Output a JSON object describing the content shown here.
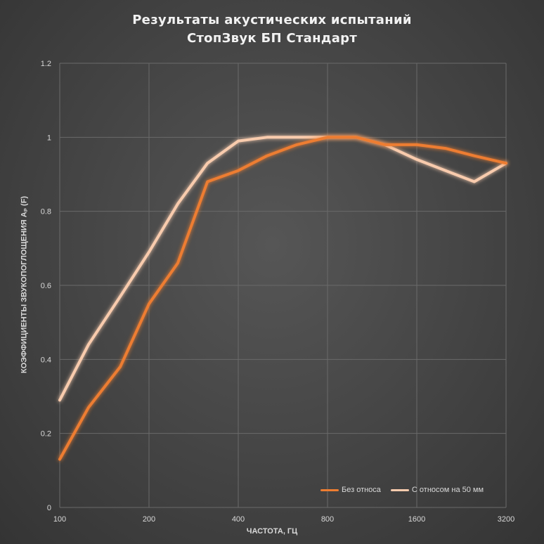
{
  "chart_data": {
    "type": "line",
    "title_line1": "Результаты акустических испытаний",
    "title_line2": "СтопЗвук БП Стандарт",
    "xlabel": "ЧАСТОТА, ГЦ",
    "ylabel": "КОЭФФИЦИЕНТЫ ЗВУКОПОГЛОЩЕНИЯ Aₚ (F)",
    "x": [
      100,
      125,
      160,
      200,
      250,
      315,
      400,
      500,
      630,
      800,
      1000,
      1250,
      1600,
      2000,
      2500,
      3200
    ],
    "x_scale": "log2",
    "x_ticks": [
      "100",
      "200",
      "400",
      "800",
      "1600",
      "3200"
    ],
    "x_tick_values": [
      100,
      200,
      400,
      800,
      1600,
      3200
    ],
    "y_ticks": [
      "0",
      "0.2",
      "0.4",
      "0.6",
      "0.8",
      "1",
      "1.2"
    ],
    "y_tick_values": [
      0,
      0.2,
      0.4,
      0.6,
      0.8,
      1,
      1.2
    ],
    "ylim": [
      0,
      1.2
    ],
    "grid": true,
    "legend_position": "bottom-right",
    "series": [
      {
        "name": "Без относа",
        "color": "#ed7d31",
        "values": [
          0.13,
          0.27,
          0.38,
          0.55,
          0.66,
          0.88,
          0.91,
          0.95,
          0.98,
          1.0,
          1.0,
          0.98,
          0.98,
          0.97,
          0.95,
          0.93
        ]
      },
      {
        "name": "С относом на 50 мм",
        "color": "#f8cbad",
        "values": [
          0.29,
          0.44,
          0.57,
          0.69,
          0.82,
          0.93,
          0.99,
          1.0,
          1.0,
          1.0,
          1.0,
          0.98,
          0.94,
          0.91,
          0.88,
          0.93
        ]
      }
    ]
  }
}
